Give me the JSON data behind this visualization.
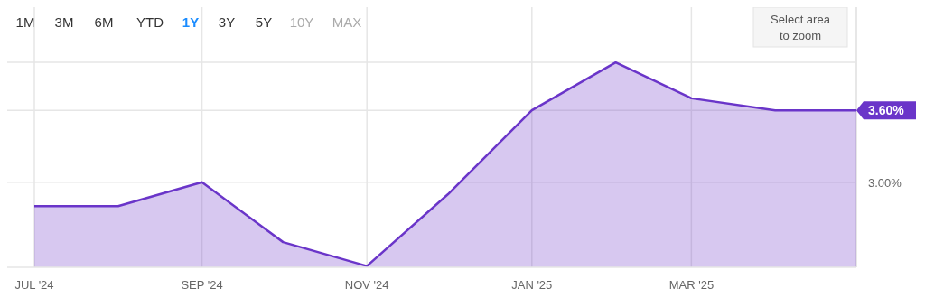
{
  "chart_data": {
    "type": "area",
    "x": [
      "2024-07",
      "2024-08",
      "2024-09",
      "2024-10",
      "2024-11",
      "2024-12",
      "2025-01",
      "2025-02",
      "2025-03",
      "2025-04",
      "2025-05"
    ],
    "series": [
      {
        "color": "#6a35c9",
        "values": [
          2.8,
          2.8,
          3.0,
          2.5,
          2.3,
          2.9,
          3.6,
          4.0,
          3.7,
          3.6,
          3.6
        ]
      }
    ],
    "xlim": [
      "2024-07",
      "2025-05"
    ],
    "xticks": [
      {
        "value": "2024-07",
        "label": "JUL '24"
      },
      {
        "value": "2024-09",
        "label": "SEP '24"
      },
      {
        "value": "2024-11",
        "label": "NOV '24"
      },
      {
        "value": "2025-01",
        "label": "JAN '25"
      },
      {
        "value": "2025-03",
        "label": "MAR '25"
      }
    ],
    "ylim": [
      2.29,
      4.46
    ],
    "yticks": [
      {
        "value": 3,
        "label": "3.00%"
      },
      {
        "value": 3.6,
        "label": "3.60%"
      },
      {
        "value": 4,
        "label": null
      }
    ],
    "grid": true,
    "annotations": [
      "1M",
      "3M",
      "6M",
      "YTD",
      "1Y",
      "3Y",
      "5Y",
      "10Y",
      "MAX",
      "Select area to zoom"
    ]
  }
}
